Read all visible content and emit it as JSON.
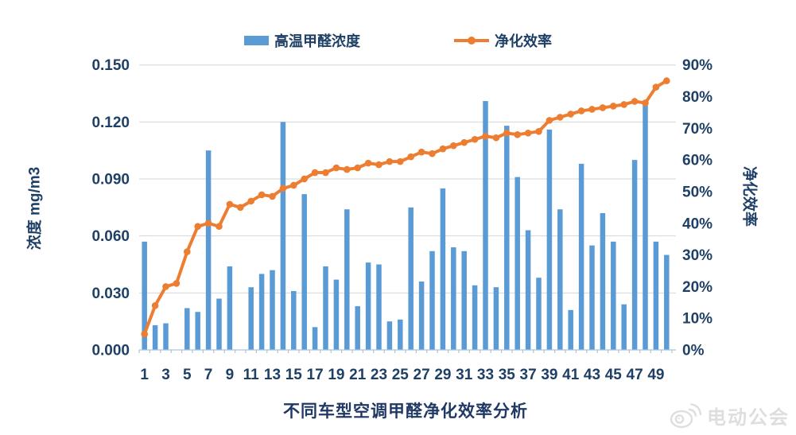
{
  "title": "不同车型空调甲醛净化效率分析",
  "legend": [
    {
      "label": "高温甲醛浓度",
      "type": "bar",
      "color": "#5B9BD5"
    },
    {
      "label": "净化效率",
      "type": "line",
      "color": "#ED7D31"
    }
  ],
  "watermark": {
    "text": "电动公会",
    "icon": "weibo-icon"
  },
  "colors": {
    "bar": "#5B9BD5",
    "line": "#ED7D31",
    "text": "#1F4066",
    "title": "#1F3864",
    "gridline": "#D6D6D6",
    "axis": "#A9C4DD",
    "watermark": "#DCDCDC"
  },
  "chart_data": {
    "type": "combo",
    "title": "不同车型空调甲醛净化效率分析",
    "categories": [
      1,
      2,
      3,
      4,
      5,
      6,
      7,
      8,
      9,
      10,
      11,
      12,
      13,
      14,
      15,
      16,
      17,
      18,
      19,
      20,
      21,
      22,
      23,
      24,
      25,
      26,
      27,
      28,
      29,
      30,
      31,
      32,
      33,
      34,
      35,
      36,
      37,
      38,
      39,
      40,
      41,
      42,
      43,
      44,
      45,
      46,
      47,
      48,
      49,
      50
    ],
    "series": [
      {
        "name": "高温甲醛浓度",
        "type": "bar",
        "axis": "left",
        "unit": "mg/m3",
        "values": [
          0.057,
          0.013,
          0.014,
          0,
          0.022,
          0.02,
          0.105,
          0.027,
          0.044,
          0,
          0.033,
          0.04,
          0.042,
          0.12,
          0.031,
          0.082,
          0.012,
          0.044,
          0.037,
          0.074,
          0.023,
          0.046,
          0.045,
          0.015,
          0.016,
          0.075,
          0.036,
          0.052,
          0.085,
          0.054,
          0.052,
          0.034,
          0.131,
          0.033,
          0.118,
          0.091,
          0.063,
          0.038,
          0.116,
          0.074,
          0.021,
          0.098,
          0.055,
          0.072,
          0.057,
          0.024,
          0.1,
          0.129,
          0.057,
          0.05
        ]
      },
      {
        "name": "净化效率",
        "type": "line",
        "axis": "right",
        "unit": "%",
        "values": [
          5,
          14,
          20,
          21,
          31,
          39,
          40,
          39,
          46,
          45,
          47,
          49,
          48.5,
          51,
          52,
          54,
          56,
          56,
          57.5,
          57,
          57.5,
          59,
          58.5,
          59.5,
          59.5,
          61,
          62.5,
          62,
          63.5,
          64.5,
          65.5,
          66.5,
          67.5,
          67,
          68.5,
          68,
          68.5,
          69,
          72.5,
          73.5,
          74.5,
          75.5,
          76,
          76.5,
          77,
          77.5,
          78.5,
          78,
          83,
          85
        ]
      }
    ],
    "left_axis": {
      "title": "浓度 mg/m3",
      "min": 0,
      "max": 0.15,
      "tick_values": [
        0,
        0.03,
        0.06,
        0.09,
        0.12,
        0.15
      ],
      "tick_labels": [
        "0.000",
        "0.030",
        "0.060",
        "0.090",
        "0.120",
        "0.150"
      ]
    },
    "right_axis": {
      "title": "净化效率",
      "min": 0,
      "max": 90,
      "tick_values": [
        0,
        10,
        20,
        30,
        40,
        50,
        60,
        70,
        80,
        90
      ],
      "tick_labels": [
        "0%",
        "10%",
        "20%",
        "30%",
        "40%",
        "50%",
        "60%",
        "70%",
        "80%",
        "90%"
      ]
    },
    "x_axis": {
      "tick_labels": [
        "1",
        "3",
        "5",
        "7",
        "9",
        "11",
        "13",
        "15",
        "17",
        "19",
        "21",
        "23",
        "25",
        "27",
        "29",
        "31",
        "33",
        "35",
        "37",
        "39",
        "41",
        "43",
        "45",
        "47",
        "49"
      ]
    },
    "grid": "horizontal-only",
    "legend_position": "top-center"
  }
}
